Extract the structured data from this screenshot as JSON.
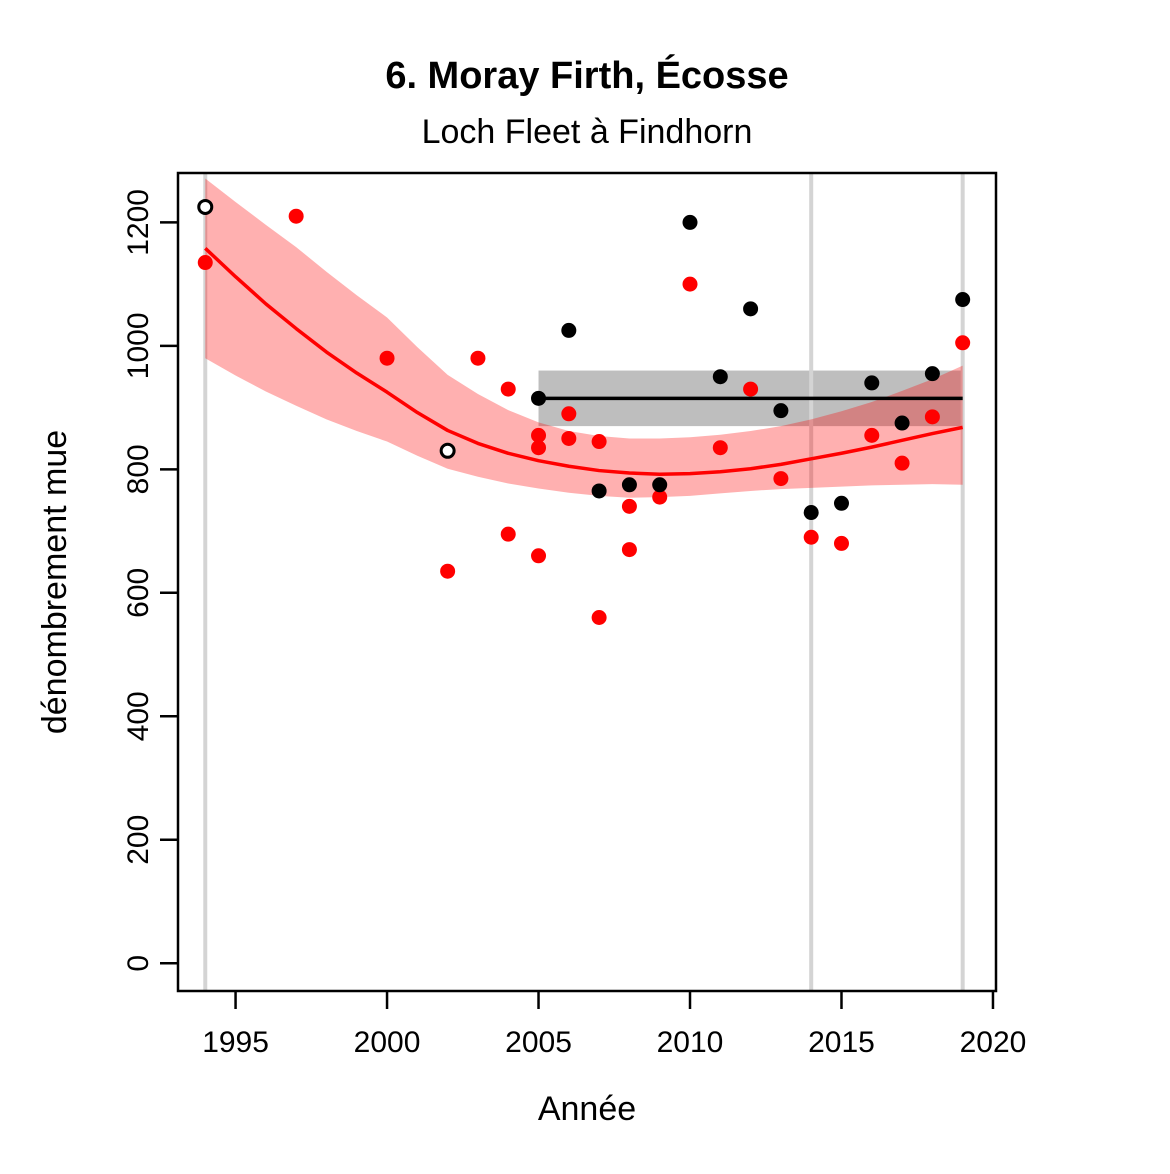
{
  "page": {
    "title": "6. Moray Firth, Écosse",
    "subtitle": "Loch Fleet à Findhorn"
  },
  "chart_data": {
    "type": "scatter",
    "title": "6. Moray Firth, Écosse",
    "subtitle": "Loch Fleet à Findhorn",
    "xlabel": "Année",
    "ylabel": "dénombrement mue",
    "xlim": [
      1993.1,
      2020.1
    ],
    "ylim": [
      -45,
      1280
    ],
    "x_ticks": [
      1995,
      2000,
      2005,
      2010,
      2015,
      2020
    ],
    "y_ticks": [
      0,
      200,
      400,
      600,
      800,
      1000,
      1200
    ],
    "grid": false,
    "legend_position": "none",
    "colors": {
      "red": "#ff0000",
      "black": "#000000",
      "confidence_band_pink": "rgba(255,0,0,0.31)",
      "reference_band_gray": "#bebebe",
      "vertical_line_gray": "#d4d4d4"
    },
    "vertical_lines_years": [
      1994,
      2014,
      2019
    ],
    "series": [
      {
        "name": "red_counts",
        "marker": "circle-filled",
        "color": "#ff0000",
        "points": [
          [
            1994,
            1135
          ],
          [
            1997,
            1210
          ],
          [
            2000,
            980
          ],
          [
            2002,
            635
          ],
          [
            2003,
            980
          ],
          [
            2004,
            930
          ],
          [
            2004,
            695
          ],
          [
            2005,
            855
          ],
          [
            2005,
            835
          ],
          [
            2005,
            660
          ],
          [
            2006,
            890
          ],
          [
            2006,
            850
          ],
          [
            2007,
            845
          ],
          [
            2007,
            560
          ],
          [
            2008,
            740
          ],
          [
            2008,
            670
          ],
          [
            2009,
            755
          ],
          [
            2010,
            1100
          ],
          [
            2011,
            835
          ],
          [
            2012,
            930
          ],
          [
            2013,
            785
          ],
          [
            2014,
            690
          ],
          [
            2015,
            680
          ],
          [
            2016,
            855
          ],
          [
            2017,
            810
          ],
          [
            2018,
            885
          ],
          [
            2019,
            1005
          ]
        ]
      },
      {
        "name": "black_counts",
        "marker": "circle-filled",
        "color": "#000000",
        "points": [
          [
            2005,
            915
          ],
          [
            2006,
            1025
          ],
          [
            2007,
            765
          ],
          [
            2008,
            775
          ],
          [
            2009,
            775
          ],
          [
            2010,
            1200
          ],
          [
            2011,
            950
          ],
          [
            2012,
            1060
          ],
          [
            2013,
            895
          ],
          [
            2014,
            730
          ],
          [
            2015,
            745
          ],
          [
            2016,
            940
          ],
          [
            2017,
            875
          ],
          [
            2018,
            955
          ],
          [
            2019,
            1075
          ]
        ]
      },
      {
        "name": "open_circle_counts",
        "marker": "circle-open",
        "color": "#000000",
        "points": [
          [
            1994,
            1225
          ],
          [
            2002,
            830
          ]
        ]
      }
    ],
    "trend": {
      "color": "#ff0000",
      "points": [
        [
          1994,
          1158
        ],
        [
          1995,
          1112
        ],
        [
          1996,
          1068
        ],
        [
          1997,
          1028
        ],
        [
          1998,
          990
        ],
        [
          1999,
          956
        ],
        [
          2000,
          925
        ],
        [
          2001,
          892
        ],
        [
          2002,
          863
        ],
        [
          2003,
          842
        ],
        [
          2004,
          826
        ],
        [
          2005,
          814
        ],
        [
          2006,
          805
        ],
        [
          2007,
          798
        ],
        [
          2008,
          794
        ],
        [
          2009,
          792
        ],
        [
          2010,
          793
        ],
        [
          2011,
          796
        ],
        [
          2012,
          801
        ],
        [
          2013,
          808
        ],
        [
          2014,
          817
        ],
        [
          2015,
          826
        ],
        [
          2016,
          836
        ],
        [
          2017,
          847
        ],
        [
          2018,
          858
        ],
        [
          2019,
          868
        ]
      ]
    },
    "confidence_band": {
      "top": [
        [
          1994,
          1271
        ],
        [
          1995,
          1233
        ],
        [
          1996,
          1196
        ],
        [
          1997,
          1160
        ],
        [
          1998,
          1120
        ],
        [
          1999,
          1082
        ],
        [
          2000,
          1046
        ],
        [
          2001,
          998
        ],
        [
          2002,
          953
        ],
        [
          2003,
          922
        ],
        [
          2004,
          896
        ],
        [
          2005,
          876
        ],
        [
          2006,
          862
        ],
        [
          2007,
          854
        ],
        [
          2008,
          850
        ],
        [
          2009,
          850
        ],
        [
          2010,
          852
        ],
        [
          2011,
          856
        ],
        [
          2012,
          862
        ],
        [
          2013,
          870
        ],
        [
          2014,
          881
        ],
        [
          2015,
          894
        ],
        [
          2016,
          909
        ],
        [
          2017,
          927
        ],
        [
          2018,
          946
        ],
        [
          2019,
          968
        ]
      ],
      "bottom": [
        [
          1994,
          980
        ],
        [
          1995,
          952
        ],
        [
          1996,
          926
        ],
        [
          1997,
          903
        ],
        [
          1998,
          881
        ],
        [
          1999,
          862
        ],
        [
          2000,
          845
        ],
        [
          2001,
          822
        ],
        [
          2002,
          801
        ],
        [
          2003,
          788
        ],
        [
          2004,
          777
        ],
        [
          2005,
          769
        ],
        [
          2006,
          762
        ],
        [
          2007,
          757
        ],
        [
          2008,
          754
        ],
        [
          2009,
          755
        ],
        [
          2010,
          757
        ],
        [
          2011,
          761
        ],
        [
          2012,
          765
        ],
        [
          2013,
          768
        ],
        [
          2014,
          770
        ],
        [
          2015,
          772
        ],
        [
          2016,
          774
        ],
        [
          2017,
          775
        ],
        [
          2018,
          776
        ],
        [
          2019,
          775
        ]
      ]
    },
    "reference_band": {
      "x_start": 2005,
      "x_end": 2019,
      "mean": 915,
      "low": 870,
      "high": 960
    }
  }
}
